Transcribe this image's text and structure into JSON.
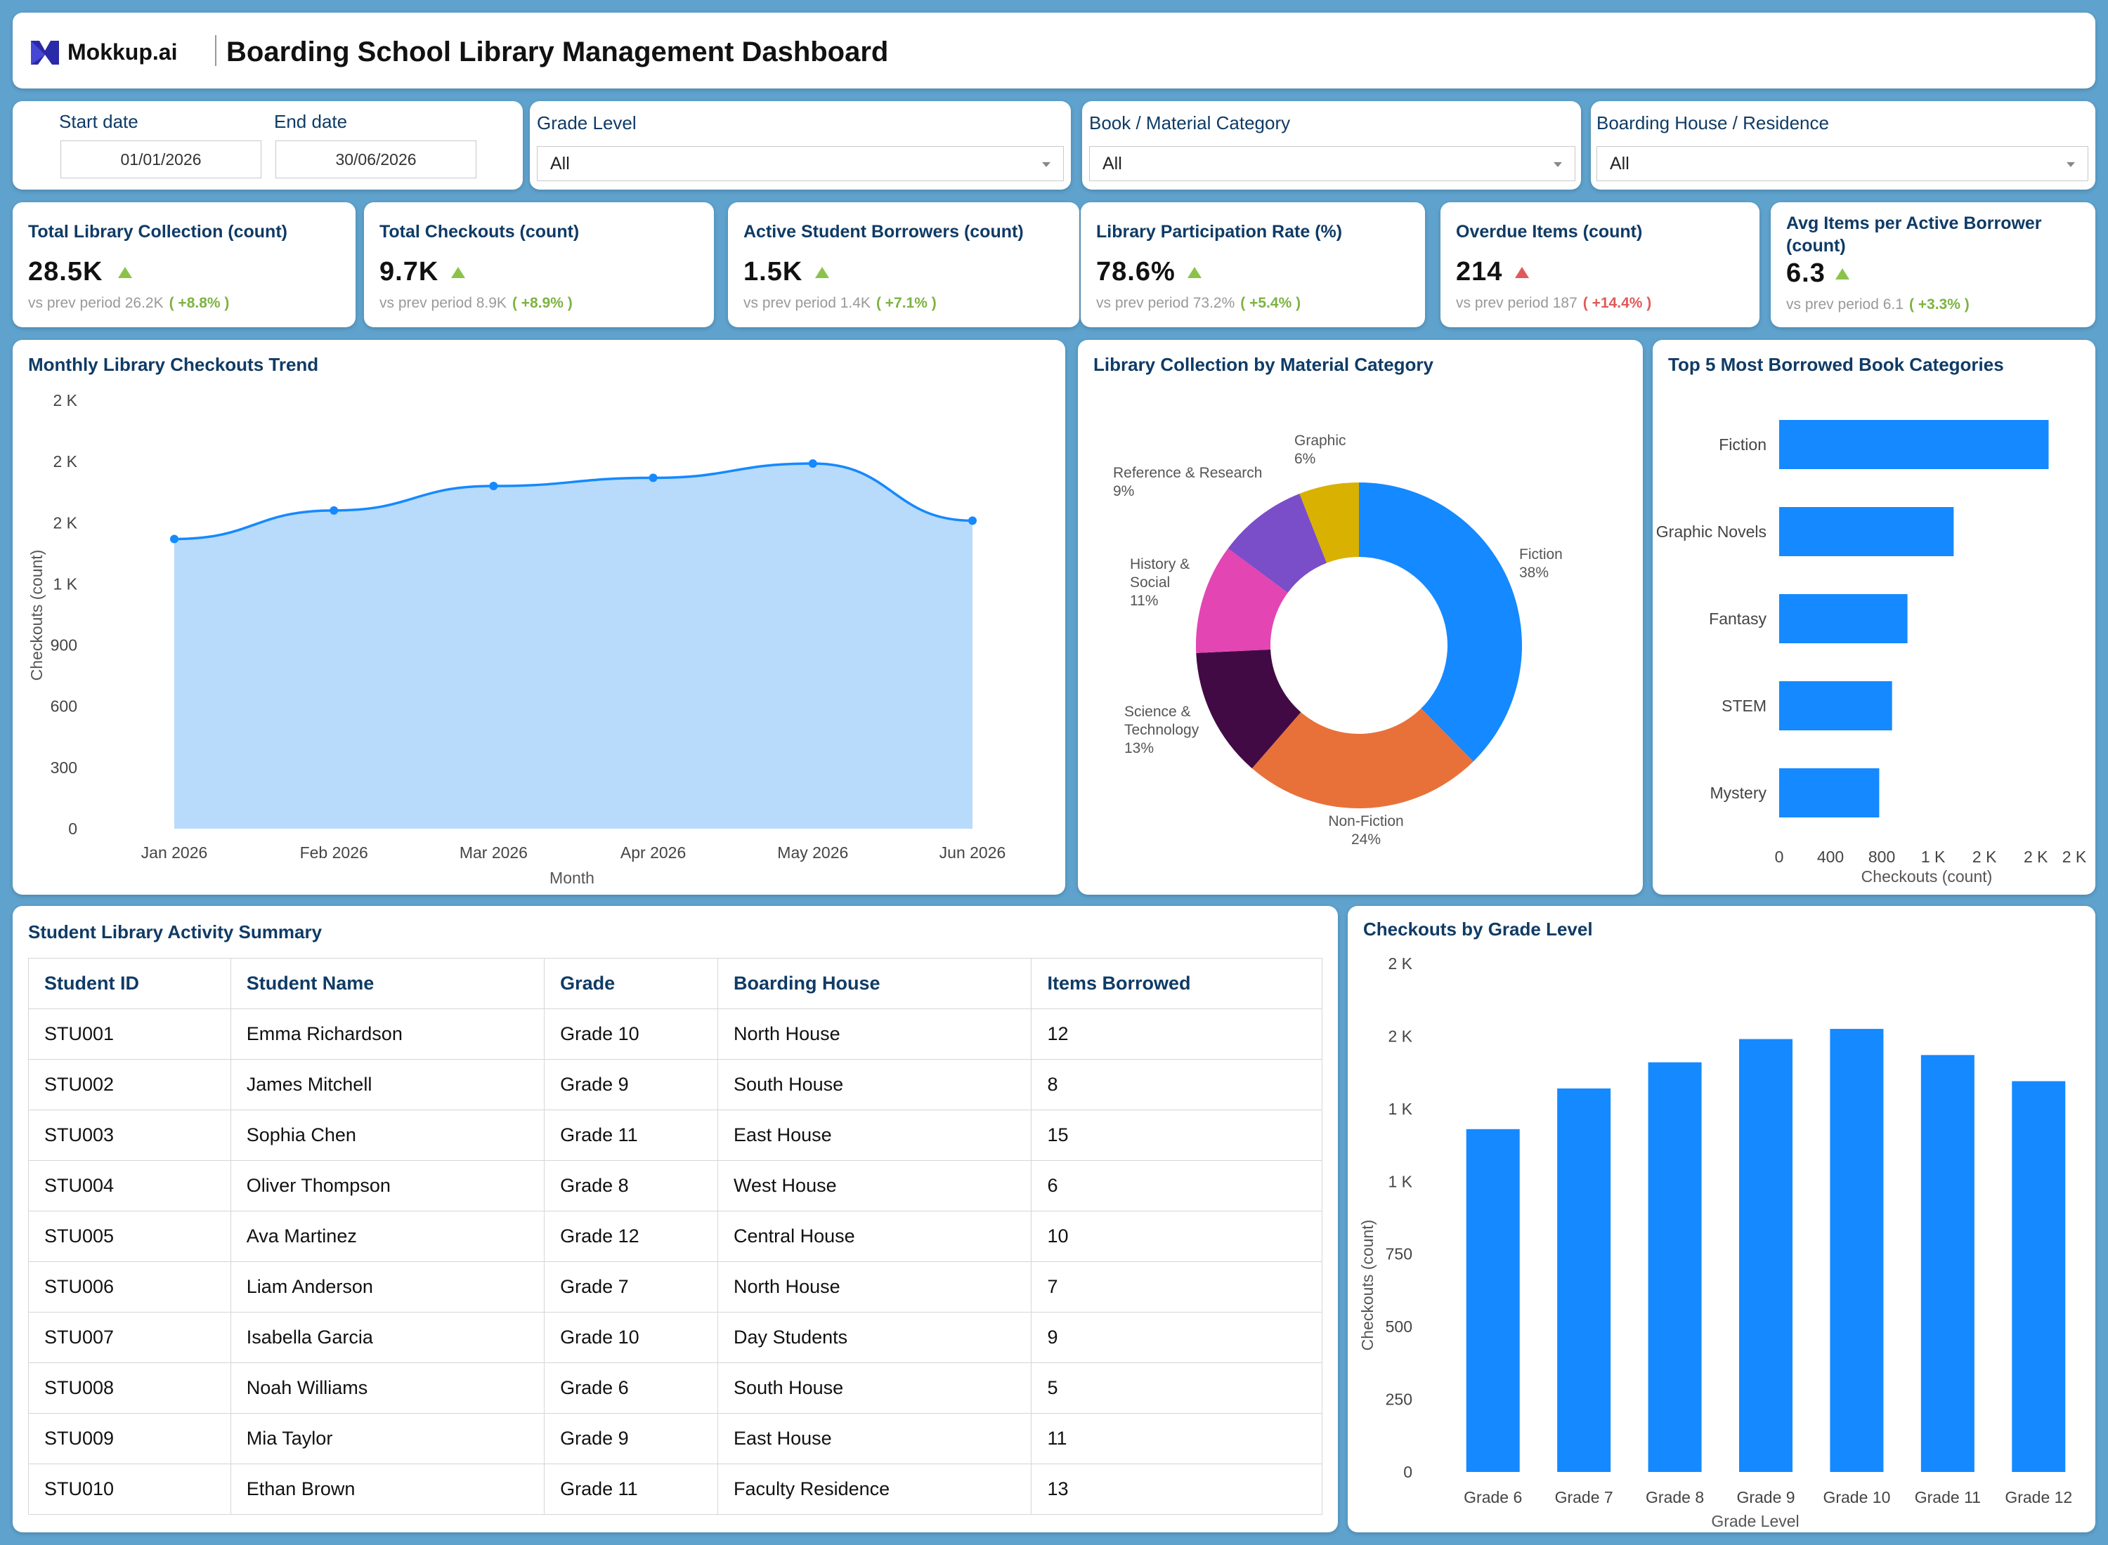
{
  "header": {
    "logo_text": "Mokkup.ai",
    "title": "Boarding School Library Management Dashboard"
  },
  "filters": {
    "start_label": "Start date",
    "start_value": "01/01/2026",
    "end_label": "End date",
    "end_value": "30/06/2026",
    "grade_label": "Grade Level",
    "grade_value": "All",
    "category_label": "Book / Material Category",
    "category_value": "All",
    "house_label": "Boarding House / Residence",
    "house_value": "All"
  },
  "kpis": [
    {
      "label": "Total Library Collection (count)",
      "value": "28.5K",
      "prev": "vs prev period 26.2K",
      "change": "( +8.8% )",
      "trend": "up"
    },
    {
      "label": "Total Checkouts (count)",
      "value": "9.7K",
      "prev": "vs prev period 8.9K",
      "change": "( +8.9% )",
      "trend": "up"
    },
    {
      "label": "Active Student Borrowers (count)",
      "value": "1.5K",
      "prev": "vs prev period 1.4K",
      "change": "( +7.1% )",
      "trend": "up"
    },
    {
      "label": "Library Participation Rate (%)",
      "value": "78.6%",
      "prev": "vs prev period 73.2%",
      "change": "( +5.4% )",
      "trend": "up"
    },
    {
      "label": "Overdue Items (count)",
      "value": "214",
      "prev": "vs prev period 187",
      "change": "( +14.4% )",
      "trend": "up-bad"
    },
    {
      "label": "Avg Items per Active Borrower (count)",
      "value": "6.3",
      "prev": "vs prev period 6.1",
      "change": "( +3.3% )",
      "trend": "up"
    }
  ],
  "colors": {
    "accent": "#1589ff",
    "area_fill": "#b8dbfb",
    "title": "#0f3b66",
    "up": "#8bc34a",
    "down": "#e05a5a"
  },
  "chart_data": [
    {
      "id": "monthly",
      "type": "area",
      "title": "Monthly Library Checkouts Trend",
      "xlabel": "Month",
      "ylabel": "Checkouts (count)",
      "categories": [
        "Jan 2026",
        "Feb 2026",
        "Mar 2026",
        "Apr 2026",
        "May 2026",
        "Jun 2026"
      ],
      "values": [
        1420,
        1560,
        1680,
        1720,
        1790,
        1510
      ],
      "ylim": [
        0,
        2100
      ],
      "yticks": [
        0,
        300,
        600,
        900,
        1200,
        1500,
        1800,
        2100
      ],
      "ytick_labels": [
        "0",
        "300",
        "600",
        "900",
        "1 K",
        "2 K",
        "2 K",
        "2 K"
      ],
      "grid": false
    },
    {
      "id": "donut",
      "type": "pie",
      "title": "Library Collection by Material Category",
      "slices": [
        {
          "name": "Fiction",
          "pct": "38%",
          "value": 38,
          "color": "#1589ff"
        },
        {
          "name": "Non-Fiction",
          "pct": "24%",
          "value": 24,
          "color": "#e8713a"
        },
        {
          "name": "Science & Technology",
          "pct": "13%",
          "value": 13,
          "color": "#420a45"
        },
        {
          "name": "History & Social",
          "pct": "11%",
          "value": 11,
          "color": "#e345b3"
        },
        {
          "name": "Reference & Research",
          "pct": "9%",
          "value": 9,
          "color": "#7a4dc9"
        },
        {
          "name": "Graphic",
          "pct": "6%",
          "value": 6,
          "color": "#d9b100"
        }
      ]
    },
    {
      "id": "top5",
      "type": "bar",
      "orientation": "horizontal",
      "title": "Top 5 Most Borrowed Book Categories",
      "xlabel": "Checkouts (count)",
      "categories": [
        "Fiction",
        "Graphic Novels",
        "Fantasy",
        "STEM",
        "Mystery"
      ],
      "values": [
        2100,
        1360,
        1000,
        880,
        780
      ],
      "xlim": [
        0,
        2300
      ],
      "xticks": [
        0,
        400,
        800,
        1200,
        1600,
        2000,
        2300
      ],
      "xtick_labels": [
        "0",
        "400",
        "800",
        "1 K",
        "2 K",
        "2 K",
        "2 K"
      ],
      "grid": false
    },
    {
      "id": "grade",
      "type": "bar",
      "title": "Checkouts by Grade Level",
      "xlabel": "Grade Level",
      "ylabel": "Checkouts (count)",
      "categories": [
        "Grade 6",
        "Grade 7",
        "Grade 8",
        "Grade 9",
        "Grade 10",
        "Grade 11",
        "Grade 12"
      ],
      "values": [
        1180,
        1320,
        1410,
        1490,
        1525,
        1435,
        1345
      ],
      "ylim": [
        0,
        1750
      ],
      "yticks": [
        0,
        250,
        500,
        750,
        1000,
        1250,
        1500,
        1750
      ],
      "ytick_labels": [
        "0",
        "250",
        "500",
        "750",
        "1 K",
        "1 K",
        "2 K",
        "2 K"
      ],
      "grid": false
    }
  ],
  "table": {
    "title": "Student Library Activity Summary",
    "headers": [
      "Student ID",
      "Student Name",
      "Grade",
      "Boarding House",
      "Items Borrowed"
    ],
    "rows": [
      [
        "STU001",
        "Emma Richardson",
        "Grade 10",
        "North House",
        "12"
      ],
      [
        "STU002",
        "James Mitchell",
        "Grade 9",
        "South House",
        "8"
      ],
      [
        "STU003",
        "Sophia Chen",
        "Grade 11",
        "East House",
        "15"
      ],
      [
        "STU004",
        "Oliver Thompson",
        "Grade 8",
        "West House",
        "6"
      ],
      [
        "STU005",
        "Ava Martinez",
        "Grade 12",
        "Central House",
        "10"
      ],
      [
        "STU006",
        "Liam Anderson",
        "Grade 7",
        "North House",
        "7"
      ],
      [
        "STU007",
        "Isabella Garcia",
        "Grade 10",
        "Day Students",
        "9"
      ],
      [
        "STU008",
        "Noah Williams",
        "Grade 6",
        "South House",
        "5"
      ],
      [
        "STU009",
        "Mia Taylor",
        "Grade 9",
        "East House",
        "11"
      ],
      [
        "STU010",
        "Ethan Brown",
        "Grade 11",
        "Faculty Residence",
        "13"
      ]
    ]
  }
}
